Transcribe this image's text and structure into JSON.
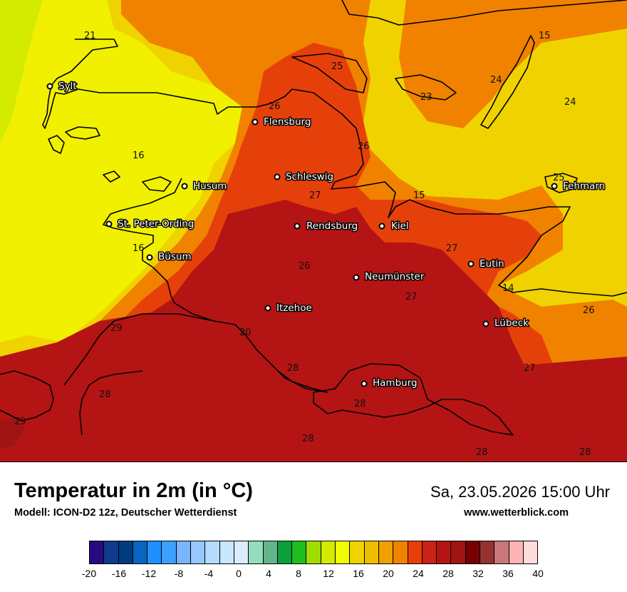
{
  "map": {
    "cities": [
      {
        "name": "Sylt"
      },
      {
        "name": "Flensburg"
      },
      {
        "name": "Schleswig"
      },
      {
        "name": "Husum"
      },
      {
        "name": "Fehmarn"
      },
      {
        "name": "St. Peter-Ording"
      },
      {
        "name": "Rendsburg"
      },
      {
        "name": "Kiel"
      },
      {
        "name": "Büsum"
      },
      {
        "name": "Eutin"
      },
      {
        "name": "Neumünster"
      },
      {
        "name": "Itzehoe"
      },
      {
        "name": "Lübeck"
      },
      {
        "name": "Hamburg"
      }
    ],
    "isotherm_labels": [
      "21",
      "25",
      "15",
      "24",
      "23",
      "24",
      "26",
      "16",
      "26",
      "27",
      "25",
      "15",
      "16",
      "27",
      "26",
      "27",
      "14",
      "26",
      "29",
      "20",
      "28",
      "28",
      "27",
      "29",
      "28",
      "28",
      "28"
    ]
  },
  "header": {
    "title": "Temperatur in 2m (in °C)",
    "subtitle": "Modell: ICON-D2 12z, Deutscher Wetterdienst",
    "datetime": "Sa, 23.05.2026 15:00 Uhr",
    "website": "www.wetterblick.com"
  },
  "legend": {
    "ticks": [
      "-20",
      "-16",
      "-12",
      "-8",
      "-4",
      "0",
      "4",
      "8",
      "12",
      "16",
      "20",
      "24",
      "28",
      "32",
      "36",
      "40"
    ],
    "colors": [
      "#2a0a80",
      "#103a8c",
      "#003c80",
      "#0a64c0",
      "#1e90ff",
      "#3ca0ff",
      "#78b4ff",
      "#96c8ff",
      "#b4dcff",
      "#c8e6ff",
      "#dcebff",
      "#96dcbe",
      "#64b48c",
      "#0aa03c",
      "#1ebe1e",
      "#a0dc00",
      "#d2eb00",
      "#f0ff00",
      "#f0d200",
      "#f0be00",
      "#f0a000",
      "#f08200",
      "#e6400a",
      "#c82314",
      "#b41414",
      "#a01414",
      "#780000",
      "#963232",
      "#c87878",
      "#ffb4b4",
      "#ffdcdc"
    ]
  }
}
